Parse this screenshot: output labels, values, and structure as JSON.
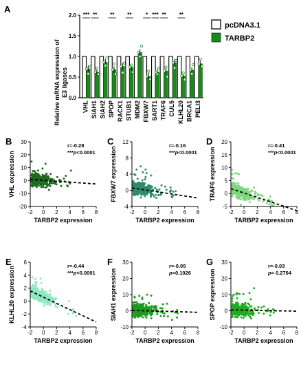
{
  "panel_a": {
    "label": "A",
    "ylabel": [
      "Relative mRNA expression of",
      "E3 ligases"
    ],
    "categories": [
      "VHL",
      "SIAH1",
      "SIAH2",
      "SPOP",
      "RACK1",
      "STUB1",
      "MDM2",
      "FBXW7",
      "SART1",
      "TRAF6",
      "CUL5",
      "KLHL20",
      "BRCA1",
      "PELI3"
    ],
    "yticks": [
      "0.0",
      "0.5",
      "1.0",
      "1.5",
      "2.0"
    ],
    "significance": [
      "***",
      "**",
      "",
      "**",
      "",
      "**",
      "",
      "*",
      "***",
      "**",
      "",
      "**",
      "",
      ""
    ],
    "legend": [
      {
        "label": "pcDNA3.1",
        "color": "#ffffff"
      },
      {
        "label": "TARBP2",
        "color": "#1a8a1a"
      }
    ],
    "chart_data": {
      "type": "bar",
      "categories": [
        "VHL",
        "SIAH1",
        "SIAH2",
        "SPOP",
        "RACK1",
        "STUB1",
        "MDM2",
        "FBXW7",
        "SART1",
        "TRAF6",
        "CUL5",
        "KLHL20",
        "BRCA1",
        "PELI3"
      ],
      "series": [
        {
          "name": "pcDNA3.1",
          "values": [
            1,
            1,
            1,
            1,
            1,
            1,
            1,
            1,
            1,
            1,
            1,
            1,
            1,
            1
          ]
        },
        {
          "name": "TARBP2",
          "values": [
            0.7,
            0.62,
            0.86,
            0.68,
            0.76,
            0.74,
            1.1,
            0.52,
            0.62,
            0.65,
            0.85,
            0.53,
            0.67,
            0.82
          ]
        }
      ],
      "ylabel": "Relative mRNA expression of E3 ligases",
      "ylim": [
        0,
        2.0
      ]
    }
  },
  "scatters": [
    {
      "label": "B",
      "ylabel": "VHL expression",
      "xlabel": "TARBP2 expression",
      "r": "r=-0.28",
      "p_prefix": "***",
      "p_text": "p<0.0001",
      "color": "#1e6b1e",
      "xticks": [
        "-2",
        "0",
        "2",
        "4",
        "6",
        "8"
      ],
      "yticks": [
        "-20",
        "-10",
        "0",
        "10",
        "20",
        "30"
      ],
      "chart_data": {
        "type": "scatter",
        "xlim": [
          -2,
          8
        ],
        "ylim": [
          -20,
          30
        ],
        "slope": -0.35,
        "intercept": 0.2
      }
    },
    {
      "label": "C",
      "ylabel": "FBXW7 expression",
      "xlabel": "TARBP2 expression",
      "r": "r=-0.16",
      "p_prefix": "***",
      "p_text": "p<0.0001",
      "color": "#2e8b6a",
      "xticks": [
        "-2",
        "0",
        "2",
        "4",
        "6",
        "8"
      ],
      "yticks": [
        "-4",
        "0",
        "4",
        "8",
        "12"
      ],
      "chart_data": {
        "type": "scatter",
        "xlim": [
          -2,
          8
        ],
        "ylim": [
          -4,
          12
        ],
        "slope": -0.25,
        "intercept": 0.1
      }
    },
    {
      "label": "D",
      "ylabel": "TRAF6 expression",
      "xlabel": "TARBP2 expression",
      "r": "r=-0.41",
      "p_prefix": "***",
      "p_text": "p<0.0001",
      "color": "#7ed67e",
      "xticks": [
        "-2",
        "0",
        "2",
        "4",
        "6",
        "8"
      ],
      "yticks": [
        "-5",
        "0",
        "5",
        "10",
        "15",
        "20"
      ],
      "chart_data": {
        "type": "scatter",
        "xlim": [
          -2,
          8
        ],
        "ylim": [
          -5,
          20
        ],
        "slope": -0.85,
        "intercept": 0.2
      }
    },
    {
      "label": "E",
      "ylabel": "KLHL20 expression",
      "xlabel": "TARBP2 expression",
      "r": "r=-0.44",
      "p_prefix": "***",
      "p_text": "p<0.0001",
      "color": "#8fe6c0",
      "xticks": [
        "-2",
        "0",
        "2",
        "4",
        "6",
        "8"
      ],
      "yticks": [
        "-4",
        "-2",
        "0",
        "2",
        "4",
        "6"
      ],
      "chart_data": {
        "type": "scatter",
        "xlim": [
          -2,
          8
        ],
        "ylim": [
          -4,
          6
        ],
        "slope": -0.48,
        "intercept": 0.6
      }
    },
    {
      "label": "F",
      "ylabel": "SIAH1 expression",
      "xlabel": "TARBP2 expression",
      "r": "r=-0.05",
      "p_prefix": "",
      "p_text": "p=0.1026",
      "color": "#1e9a1e",
      "xticks": [
        "-2",
        "0",
        "2",
        "4",
        "6",
        "8"
      ],
      "yticks": [
        "-10",
        "0",
        "10",
        "20",
        "30"
      ],
      "chart_data": {
        "type": "scatter",
        "xlim": [
          -2,
          8
        ],
        "ylim": [
          -10,
          30
        ],
        "slope": -0.12,
        "intercept": 0.0
      }
    },
    {
      "label": "G",
      "ylabel": "SPOP expression",
      "xlabel": "TARBP2 expression",
      "r": "r=-0.03",
      "p_prefix": "",
      "p_text": "p= 0.2764",
      "color": "#22aa22",
      "xticks": [
        "-2",
        "0",
        "2",
        "4",
        "6",
        "8"
      ],
      "yticks": [
        "-10",
        "0",
        "10",
        "20",
        "30"
      ],
      "chart_data": {
        "type": "scatter",
        "xlim": [
          -2,
          8
        ],
        "ylim": [
          -10,
          30
        ],
        "slope": -0.08,
        "intercept": 0.4
      }
    }
  ]
}
